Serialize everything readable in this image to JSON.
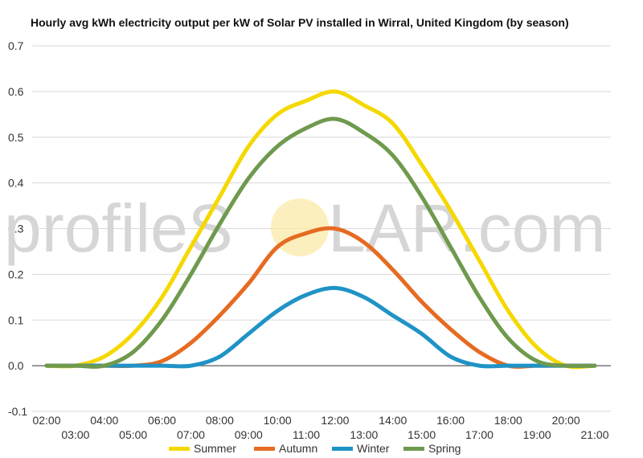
{
  "watermark": {
    "part1": "profileS",
    "part2": "LAR.com",
    "sun_color": "#fbeaa8"
  },
  "chart_data": {
    "type": "line",
    "title": "Hourly avg kWh electricity output per kW of Solar PV installed in Wirral, United Kingdom (by season)",
    "xlabel": "",
    "ylabel": "",
    "ylim": [
      -0.1,
      0.7
    ],
    "yticks": [
      "0.7",
      "0.6",
      "0.5",
      "0.4",
      "0.3",
      "0.2",
      "0.1",
      "0.0",
      "-0.1"
    ],
    "grid": true,
    "legend_position": "bottom",
    "x": [
      "02:00",
      "03:00",
      "04:00",
      "05:00",
      "06:00",
      "07:00",
      "08:00",
      "09:00",
      "10:00",
      "11:00",
      "12:00",
      "13:00",
      "14:00",
      "15:00",
      "16:00",
      "17:00",
      "18:00",
      "19:00",
      "20:00",
      "21:00"
    ],
    "series": [
      {
        "name": "Summer",
        "color": "#f5d800",
        "values": [
          0.0,
          0.0,
          0.02,
          0.07,
          0.15,
          0.26,
          0.37,
          0.48,
          0.55,
          0.58,
          0.6,
          0.57,
          0.53,
          0.44,
          0.34,
          0.23,
          0.12,
          0.04,
          0.0,
          0.0
        ]
      },
      {
        "name": "Autumn",
        "color": "#e66b22",
        "values": [
          0.0,
          0.0,
          0.0,
          0.0,
          0.01,
          0.05,
          0.11,
          0.18,
          0.26,
          0.29,
          0.3,
          0.27,
          0.21,
          0.14,
          0.08,
          0.03,
          0.0,
          0.0,
          0.0,
          0.0
        ]
      },
      {
        "name": "Winter",
        "color": "#1f93c6",
        "values": [
          0.0,
          0.0,
          0.0,
          0.0,
          0.0,
          0.0,
          0.02,
          0.07,
          0.12,
          0.155,
          0.17,
          0.15,
          0.11,
          0.07,
          0.02,
          0.0,
          0.0,
          0.0,
          0.0,
          0.0
        ]
      },
      {
        "name": "Spring",
        "color": "#6f9a4e",
        "values": [
          0.0,
          0.0,
          0.0,
          0.03,
          0.1,
          0.2,
          0.31,
          0.41,
          0.48,
          0.52,
          0.54,
          0.51,
          0.46,
          0.37,
          0.26,
          0.15,
          0.06,
          0.01,
          0.0,
          0.0
        ]
      }
    ]
  }
}
